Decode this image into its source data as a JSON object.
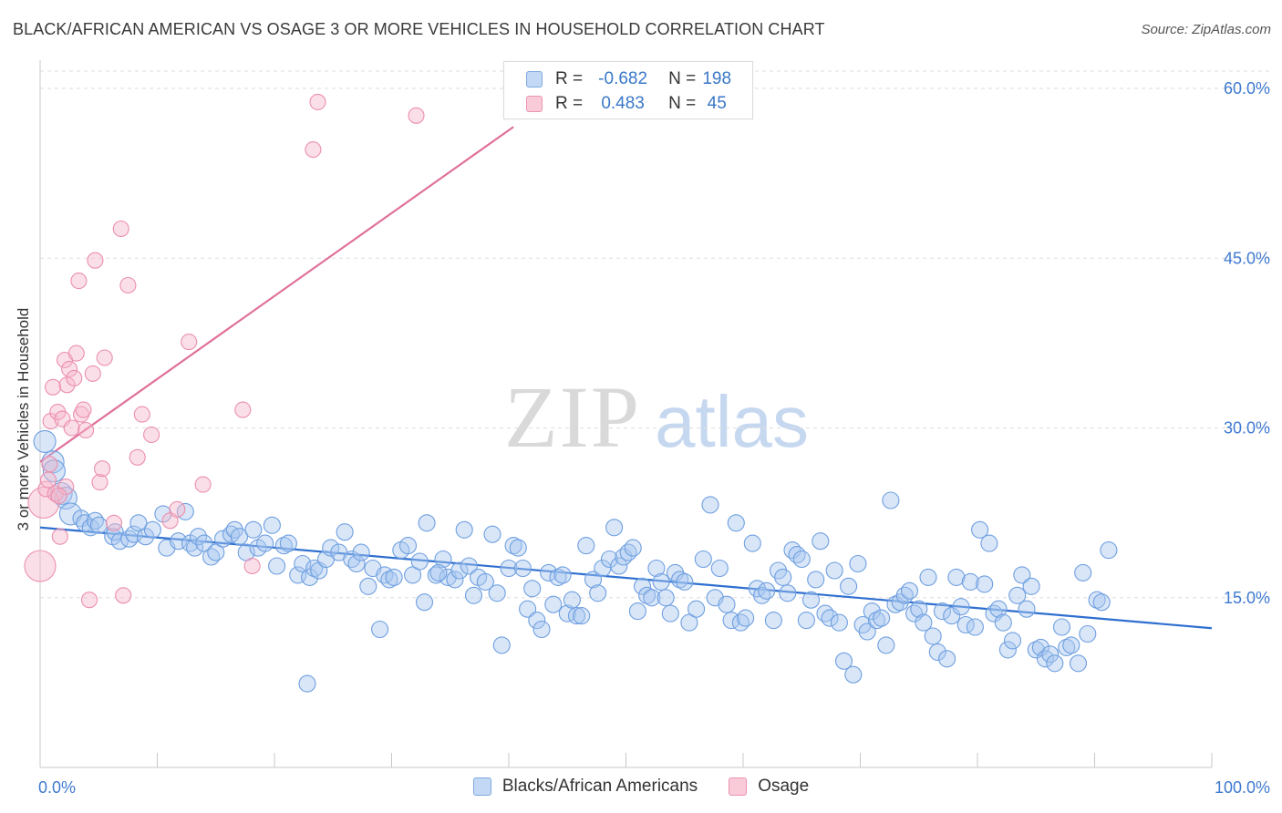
{
  "title": "BLACK/AFRICAN AMERICAN VS OSAGE 3 OR MORE VEHICLES IN HOUSEHOLD CORRELATION CHART",
  "source": "Source: ZipAtlas.com",
  "watermark": {
    "zip": "ZIP",
    "atlas": "atlas"
  },
  "legend": {
    "rows": [
      {
        "r_label": "R =",
        "r_value": "-0.682",
        "n_label": "N =",
        "n_value": "198",
        "color": "#a9c8f0"
      },
      {
        "r_label": "R =",
        "r_value": "0.483",
        "n_label": "N =",
        "n_value": "45",
        "color": "#f6b8cc"
      }
    ]
  },
  "bottom_legend": [
    {
      "label": "Blacks/African Americans",
      "color": "#a9c8f0"
    },
    {
      "label": "Osage",
      "color": "#f6b8cc"
    }
  ],
  "chart_data": {
    "type": "scatter",
    "title": "BLACK/AFRICAN AMERICAN VS OSAGE 3 OR MORE VEHICLES IN HOUSEHOLD CORRELATION CHART",
    "xlabel": "",
    "ylabel": "3 or more Vehicles in Household",
    "xlim": [
      0,
      100
    ],
    "ylim": [
      0,
      62
    ],
    "x_tick_labels": [
      "0.0%",
      "100.0%"
    ],
    "y_ticks": [
      15,
      30,
      45,
      60
    ],
    "y_tick_labels": [
      "15.0%",
      "30.0%",
      "45.0%",
      "60.0%"
    ],
    "grid": true,
    "legend_position": "top-center",
    "series": [
      {
        "name": "Blacks/African Americans",
        "color": "#6f9fe0",
        "fill": "#a9c8f0",
        "trend": {
          "x": [
            0,
            100
          ],
          "y": [
            21.2,
            12.3
          ]
        },
        "points": [
          [
            0.4,
            28.8
          ],
          [
            1.1,
            27.0
          ],
          [
            1.2,
            26.2
          ],
          [
            1.8,
            24.2
          ],
          [
            2.2,
            23.8
          ],
          [
            2.6,
            22.4
          ],
          [
            3.5,
            22.0
          ],
          [
            3.8,
            21.6
          ],
          [
            4.3,
            21.2
          ],
          [
            4.7,
            21.8
          ],
          [
            5.0,
            21.4
          ],
          [
            6.2,
            20.4
          ],
          [
            6.4,
            20.8
          ],
          [
            6.8,
            20.0
          ],
          [
            7.6,
            20.2
          ],
          [
            8.0,
            20.6
          ],
          [
            8.4,
            21.6
          ],
          [
            9.0,
            20.4
          ],
          [
            9.6,
            21.0
          ],
          [
            10.5,
            22.4
          ],
          [
            10.8,
            19.4
          ],
          [
            11.8,
            20.0
          ],
          [
            12.4,
            22.6
          ],
          [
            12.8,
            19.8
          ],
          [
            13.2,
            19.4
          ],
          [
            13.5,
            20.4
          ],
          [
            14.0,
            19.8
          ],
          [
            14.6,
            18.6
          ],
          [
            15.0,
            19.0
          ],
          [
            15.6,
            20.2
          ],
          [
            16.3,
            20.6
          ],
          [
            16.6,
            21.0
          ],
          [
            17.0,
            20.4
          ],
          [
            17.6,
            19.0
          ],
          [
            18.2,
            21.0
          ],
          [
            18.6,
            19.4
          ],
          [
            19.2,
            19.8
          ],
          [
            19.8,
            21.4
          ],
          [
            20.2,
            17.8
          ],
          [
            20.8,
            19.6
          ],
          [
            21.2,
            19.8
          ],
          [
            22.0,
            17.0
          ],
          [
            22.4,
            18.0
          ],
          [
            23.0,
            16.8
          ],
          [
            23.4,
            17.6
          ],
          [
            23.8,
            17.4
          ],
          [
            24.4,
            18.4
          ],
          [
            24.8,
            19.4
          ],
          [
            25.5,
            19.0
          ],
          [
            26.0,
            20.8
          ],
          [
            26.6,
            18.4
          ],
          [
            27.0,
            18.0
          ],
          [
            27.4,
            19.0
          ],
          [
            28.0,
            16.0
          ],
          [
            28.4,
            17.6
          ],
          [
            29.0,
            12.2
          ],
          [
            29.4,
            17.0
          ],
          [
            29.8,
            16.6
          ],
          [
            30.2,
            16.8
          ],
          [
            30.8,
            19.2
          ],
          [
            31.4,
            19.6
          ],
          [
            31.8,
            17.0
          ],
          [
            32.4,
            18.2
          ],
          [
            32.8,
            14.6
          ],
          [
            33.0,
            21.6
          ],
          [
            33.8,
            17.0
          ],
          [
            34.4,
            18.4
          ],
          [
            34.8,
            16.8
          ],
          [
            35.4,
            16.6
          ],
          [
            35.8,
            17.4
          ],
          [
            36.2,
            21.0
          ],
          [
            36.6,
            17.8
          ],
          [
            37.0,
            15.2
          ],
          [
            37.4,
            16.8
          ],
          [
            38.0,
            16.4
          ],
          [
            38.6,
            20.6
          ],
          [
            39.0,
            15.4
          ],
          [
            39.4,
            10.8
          ],
          [
            40.0,
            17.6
          ],
          [
            40.4,
            19.6
          ],
          [
            40.8,
            19.4
          ],
          [
            41.2,
            17.6
          ],
          [
            41.6,
            14.0
          ],
          [
            42.0,
            15.8
          ],
          [
            42.4,
            13.0
          ],
          [
            42.8,
            12.2
          ],
          [
            43.4,
            17.2
          ],
          [
            43.8,
            14.4
          ],
          [
            44.2,
            16.8
          ],
          [
            44.6,
            17.0
          ],
          [
            45.0,
            13.6
          ],
          [
            45.4,
            14.8
          ],
          [
            45.8,
            13.4
          ],
          [
            46.2,
            13.4
          ],
          [
            46.6,
            19.6
          ],
          [
            47.2,
            16.6
          ],
          [
            47.6,
            15.4
          ],
          [
            48.0,
            17.6
          ],
          [
            48.6,
            18.4
          ],
          [
            49.0,
            21.2
          ],
          [
            49.4,
            17.8
          ],
          [
            49.8,
            18.6
          ],
          [
            50.2,
            19.0
          ],
          [
            50.6,
            19.4
          ],
          [
            51.0,
            13.8
          ],
          [
            51.4,
            16.0
          ],
          [
            51.8,
            15.2
          ],
          [
            52.2,
            15.0
          ],
          [
            52.6,
            17.6
          ],
          [
            53.0,
            16.4
          ],
          [
            53.4,
            15.0
          ],
          [
            53.8,
            13.6
          ],
          [
            54.2,
            17.2
          ],
          [
            54.6,
            16.6
          ],
          [
            55.0,
            16.4
          ],
          [
            55.4,
            12.8
          ],
          [
            56.0,
            14.0
          ],
          [
            56.6,
            18.4
          ],
          [
            57.2,
            23.2
          ],
          [
            57.6,
            15.0
          ],
          [
            58.0,
            17.6
          ],
          [
            58.6,
            14.4
          ],
          [
            59.0,
            13.0
          ],
          [
            59.4,
            21.6
          ],
          [
            59.8,
            12.8
          ],
          [
            60.2,
            13.2
          ],
          [
            60.8,
            19.8
          ],
          [
            61.2,
            15.8
          ],
          [
            61.6,
            15.2
          ],
          [
            62.0,
            15.6
          ],
          [
            62.6,
            13.0
          ],
          [
            63.0,
            17.4
          ],
          [
            63.4,
            16.8
          ],
          [
            63.8,
            15.4
          ],
          [
            64.2,
            19.2
          ],
          [
            64.6,
            18.8
          ],
          [
            65.0,
            18.4
          ],
          [
            65.4,
            13.0
          ],
          [
            65.8,
            14.8
          ],
          [
            66.2,
            16.6
          ],
          [
            66.6,
            20.0
          ],
          [
            67.0,
            13.6
          ],
          [
            67.4,
            13.2
          ],
          [
            67.8,
            17.4
          ],
          [
            68.2,
            12.8
          ],
          [
            68.6,
            9.4
          ],
          [
            69.0,
            16.0
          ],
          [
            69.4,
            8.2
          ],
          [
            69.8,
            18.0
          ],
          [
            70.2,
            12.6
          ],
          [
            70.6,
            12.0
          ],
          [
            71.0,
            13.8
          ],
          [
            71.4,
            13.0
          ],
          [
            71.8,
            13.2
          ],
          [
            72.2,
            10.8
          ],
          [
            72.6,
            23.6
          ],
          [
            73.0,
            14.4
          ],
          [
            73.4,
            14.6
          ],
          [
            73.8,
            15.2
          ],
          [
            74.2,
            15.6
          ],
          [
            74.6,
            13.6
          ],
          [
            75.0,
            14.0
          ],
          [
            75.4,
            12.8
          ],
          [
            75.8,
            16.8
          ],
          [
            76.2,
            11.6
          ],
          [
            76.6,
            10.2
          ],
          [
            77.0,
            13.8
          ],
          [
            77.4,
            9.6
          ],
          [
            77.8,
            13.4
          ],
          [
            78.2,
            16.8
          ],
          [
            78.6,
            14.2
          ],
          [
            79.0,
            12.6
          ],
          [
            79.4,
            16.4
          ],
          [
            79.8,
            12.4
          ],
          [
            80.2,
            21.0
          ],
          [
            80.6,
            16.2
          ],
          [
            81.0,
            19.8
          ],
          [
            81.4,
            13.6
          ],
          [
            81.8,
            14.0
          ],
          [
            82.2,
            12.8
          ],
          [
            82.6,
            10.4
          ],
          [
            83.0,
            11.2
          ],
          [
            83.4,
            15.2
          ],
          [
            83.8,
            17.0
          ],
          [
            84.2,
            14.0
          ],
          [
            84.6,
            16.0
          ],
          [
            85.0,
            10.4
          ],
          [
            85.4,
            10.6
          ],
          [
            85.8,
            9.6
          ],
          [
            86.2,
            10.0
          ],
          [
            86.6,
            9.2
          ],
          [
            87.2,
            12.4
          ],
          [
            87.6,
            10.6
          ],
          [
            88.0,
            10.8
          ],
          [
            88.6,
            9.2
          ],
          [
            89.0,
            17.2
          ],
          [
            89.4,
            11.8
          ],
          [
            90.2,
            14.8
          ],
          [
            90.6,
            14.6
          ],
          [
            91.2,
            19.2
          ],
          [
            22.8,
            7.4
          ],
          [
            34.0,
            17.2
          ]
        ]
      },
      {
        "name": "Osage",
        "color": "#eb8fae",
        "fill": "#f6b8cc",
        "trend": {
          "x": [
            0,
            40.4
          ],
          "y": [
            27.0,
            56.6
          ]
        },
        "points": [
          [
            0.0,
            17.8
          ],
          [
            0.3,
            23.4
          ],
          [
            0.5,
            24.6
          ],
          [
            0.7,
            25.4
          ],
          [
            0.9,
            30.6
          ],
          [
            1.1,
            33.6
          ],
          [
            1.3,
            24.2
          ],
          [
            1.5,
            31.4
          ],
          [
            1.7,
            20.4
          ],
          [
            1.9,
            30.8
          ],
          [
            2.1,
            36.0
          ],
          [
            2.2,
            24.8
          ],
          [
            2.3,
            33.8
          ],
          [
            2.5,
            35.2
          ],
          [
            2.7,
            30.0
          ],
          [
            2.9,
            34.4
          ],
          [
            3.1,
            36.6
          ],
          [
            3.3,
            43.0
          ],
          [
            3.5,
            31.2
          ],
          [
            3.7,
            31.6
          ],
          [
            3.9,
            29.8
          ],
          [
            4.2,
            14.8
          ],
          [
            4.5,
            34.8
          ],
          [
            4.7,
            44.8
          ],
          [
            5.1,
            25.2
          ],
          [
            5.3,
            26.4
          ],
          [
            5.5,
            36.2
          ],
          [
            6.3,
            21.6
          ],
          [
            6.9,
            47.6
          ],
          [
            7.1,
            15.2
          ],
          [
            7.5,
            42.6
          ],
          [
            8.3,
            27.4
          ],
          [
            8.7,
            31.2
          ],
          [
            9.5,
            29.4
          ],
          [
            11.1,
            21.8
          ],
          [
            11.7,
            22.8
          ],
          [
            12.7,
            37.6
          ],
          [
            13.9,
            25.0
          ],
          [
            17.3,
            31.6
          ],
          [
            18.1,
            17.8
          ],
          [
            23.3,
            54.6
          ],
          [
            23.7,
            58.8
          ],
          [
            32.1,
            57.6
          ],
          [
            0.8,
            26.8
          ],
          [
            1.6,
            24.0
          ]
        ]
      }
    ]
  }
}
